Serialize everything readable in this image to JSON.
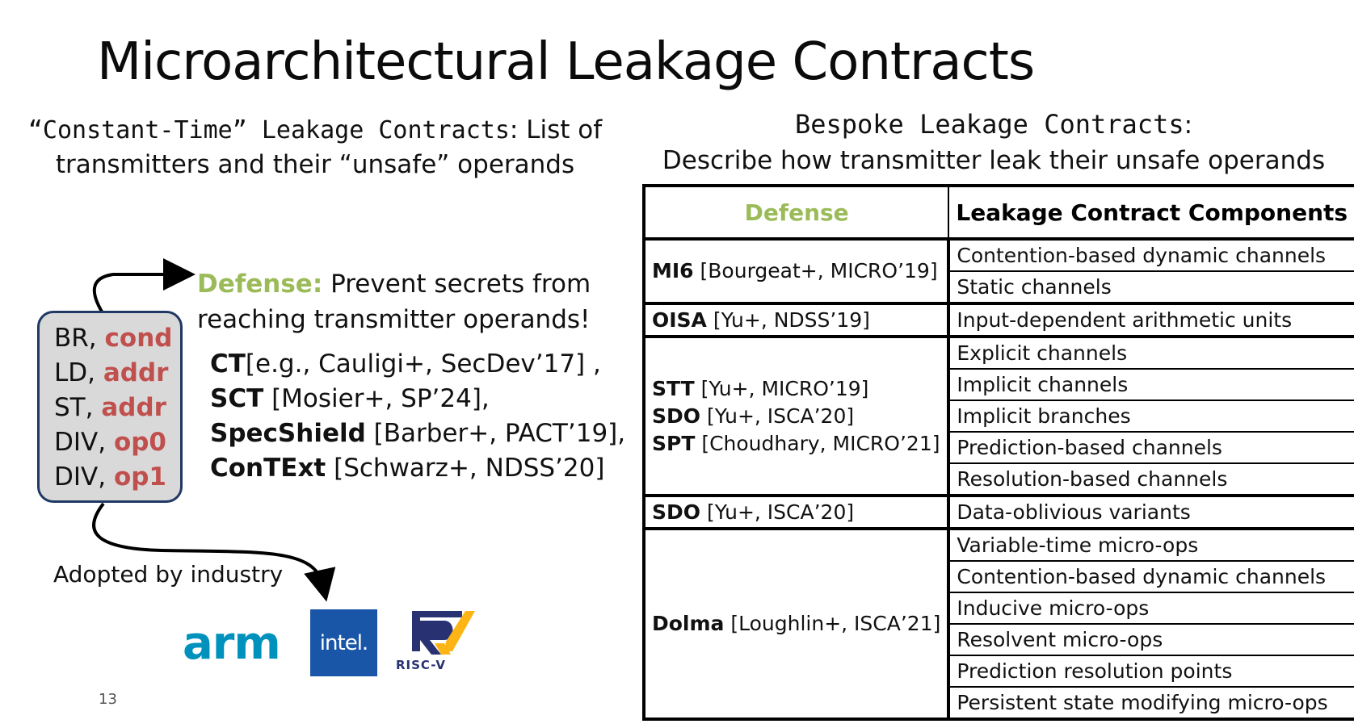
{
  "title": "Microarchitectural Leakage Contracts",
  "left": {
    "heading_em": "“Constant-Time” Leakage Contracts",
    "heading_rest_1": ": List of",
    "heading_line2": "transmitters and their “unsafe” operands",
    "transmitters": [
      {
        "op": "BR,",
        "operand": "cond"
      },
      {
        "op": "LD,",
        "operand": "addr"
      },
      {
        "op": "ST,",
        "operand": "addr"
      },
      {
        "op": "DIV,",
        "operand": "op0"
      },
      {
        "op": "DIV,",
        "operand": "op1"
      }
    ],
    "defense_label": "Defense:",
    "defense_line1": " Prevent secrets from",
    "defense_line2": "reaching transmitter operands!",
    "citations": [
      {
        "name": "CT",
        "ref": "[e.g., Cauligi+, SecDev’17] ,"
      },
      {
        "name": "SCT",
        "ref": " [Mosier+, SP’24],"
      },
      {
        "name": "SpecShield",
        "ref": " [Barber+, PACT’19],"
      },
      {
        "name": "ConTExt",
        "ref": " [Schwarz+, NDSS’20]"
      }
    ],
    "adopted": "Adopted by industry",
    "logos": {
      "arm": "arm",
      "intel": "intel.",
      "riscv": "RISC-V"
    }
  },
  "right": {
    "heading_em": "Bespoke Leakage Contracts",
    "heading_colon": ":",
    "heading_line2": "Describe how transmitter leak their unsafe operands",
    "table": {
      "col_defense": "Defense",
      "col_components": "Leakage Contract Components",
      "groups": [
        {
          "defenses": [
            {
              "name": "MI6",
              "ref": " [Bourgeat+, MICRO’19]"
            }
          ],
          "components": [
            "Contention-based dynamic channels",
            "Static channels"
          ]
        },
        {
          "defenses": [
            {
              "name": "OISA",
              "ref": " [Yu+, NDSS’19]"
            }
          ],
          "components": [
            "Input-dependent arithmetic units"
          ]
        },
        {
          "defenses": [
            {
              "name": "STT",
              "ref": " [Yu+, MICRO’19]"
            },
            {
              "name": "SDO",
              "ref": " [Yu+, ISCA’20]"
            },
            {
              "name": "SPT",
              "ref": " [Choudhary, MICRO’21]"
            }
          ],
          "components": [
            "Explicit channels",
            "Implicit channels",
            "Implicit branches",
            "Prediction-based channels",
            "Resolution-based channels"
          ]
        },
        {
          "defenses": [
            {
              "name": "SDO",
              "ref": " [Yu+, ISCA’20]"
            }
          ],
          "components": [
            "Data-oblivious variants"
          ]
        },
        {
          "defenses": [
            {
              "name": "Dolma",
              "ref": " [Loughlin+, ISCA’21]"
            }
          ],
          "components": [
            "Variable-time micro-ops",
            "Contention-based dynamic channels",
            "Inducive micro-ops",
            "Resolvent micro-ops",
            "Prediction resolution points",
            "Persistent state modifying micro-ops"
          ]
        }
      ]
    }
  },
  "page_number": "13",
  "colors": {
    "green": "#9bbb59",
    "red": "#c0504d",
    "navy": "#203864",
    "arm_blue": "#0091bd",
    "intel_blue": "#1a56a8"
  }
}
